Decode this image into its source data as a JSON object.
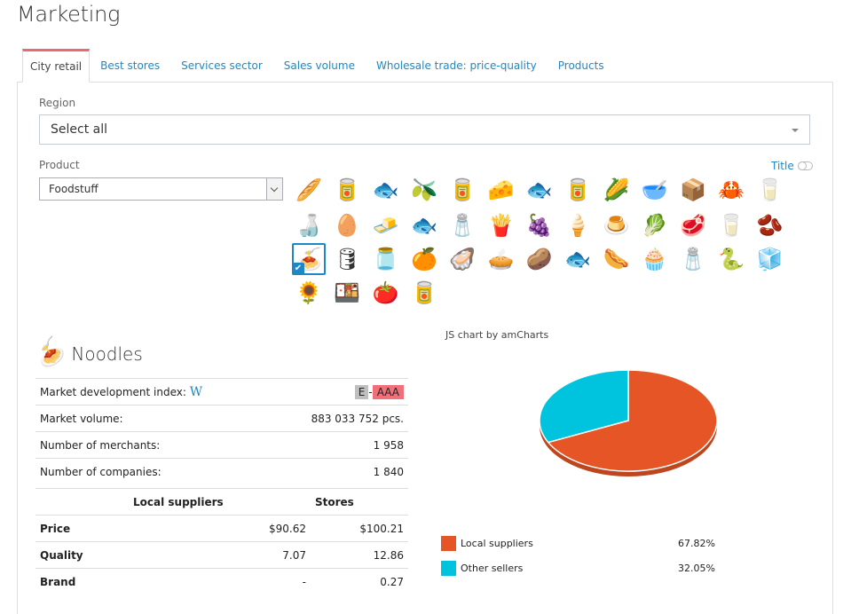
{
  "page": {
    "title": "Marketing"
  },
  "tabs": [
    {
      "label": "City retail",
      "active": true
    },
    {
      "label": "Best stores",
      "active": false
    },
    {
      "label": "Services sector",
      "active": false
    },
    {
      "label": "Sales volume",
      "active": false
    },
    {
      "label": "Wholesale trade: price-quality",
      "active": false
    },
    {
      "label": "Products",
      "active": false
    }
  ],
  "filters": {
    "region_label": "Region",
    "region_value": "Select all",
    "product_label": "Product",
    "product_value": "Foodstuff",
    "title_toggle_label": "Title"
  },
  "products": [
    {
      "name": "bread",
      "glyph": "🥖"
    },
    {
      "name": "condensed-milk-can",
      "glyph": "🥫"
    },
    {
      "name": "canned-fish-tin",
      "glyph": "🐟"
    },
    {
      "name": "olives-can",
      "glyph": "🫒"
    },
    {
      "name": "canned-food",
      "glyph": "🥫"
    },
    {
      "name": "cheese",
      "glyph": "🧀"
    },
    {
      "name": "fish",
      "glyph": "🐟"
    },
    {
      "name": "sprats-tin",
      "glyph": "🥫"
    },
    {
      "name": "corn",
      "glyph": "🌽"
    },
    {
      "name": "corn-flakes",
      "glyph": "🥣"
    },
    {
      "name": "flour-pack",
      "glyph": "📦"
    },
    {
      "name": "crab",
      "glyph": "🦀"
    },
    {
      "name": "yogurt",
      "glyph": "🥛"
    },
    {
      "name": "sauces",
      "glyph": "🍶"
    },
    {
      "name": "eggs",
      "glyph": "🥚"
    },
    {
      "name": "butter",
      "glyph": "🧈"
    },
    {
      "name": "fish-pair",
      "glyph": "🐟"
    },
    {
      "name": "salt",
      "glyph": "🧂"
    },
    {
      "name": "french-fries",
      "glyph": "🍟"
    },
    {
      "name": "grapes",
      "glyph": "🍇"
    },
    {
      "name": "ice-cream",
      "glyph": "🍦"
    },
    {
      "name": "dessert-cup",
      "glyph": "🍮"
    },
    {
      "name": "cabbage",
      "glyph": "🥬"
    },
    {
      "name": "meat",
      "glyph": "🥩"
    },
    {
      "name": "milk",
      "glyph": "🥛"
    },
    {
      "name": "soya-beans",
      "glyph": "🫘"
    },
    {
      "name": "noodles",
      "glyph": "🍝",
      "selected": true
    },
    {
      "name": "sunflower-oil",
      "glyph": "🛢"
    },
    {
      "name": "olive-oil",
      "glyph": "🫙"
    },
    {
      "name": "oranges",
      "glyph": "🍊"
    },
    {
      "name": "oysters",
      "glyph": "🦪"
    },
    {
      "name": "pie",
      "glyph": "🥧"
    },
    {
      "name": "potato",
      "glyph": "🥔"
    },
    {
      "name": "salmon",
      "glyph": "🐟"
    },
    {
      "name": "sausages",
      "glyph": "🌭"
    },
    {
      "name": "cupcake",
      "glyph": "🧁"
    },
    {
      "name": "spices",
      "glyph": "🧂"
    },
    {
      "name": "eel",
      "glyph": "🐍"
    },
    {
      "name": "sugar",
      "glyph": "🧊"
    },
    {
      "name": "sunflower-seeds",
      "glyph": "🌻"
    },
    {
      "name": "tofu",
      "glyph": "🍱"
    },
    {
      "name": "tomato",
      "glyph": "🍅"
    },
    {
      "name": "tomato-paste-can",
      "glyph": "🥫"
    }
  ],
  "selected_product": {
    "name": "Noodles",
    "glyph": "🍝",
    "info": [
      {
        "label": "Market development index:",
        "link": "W",
        "badge_from": "E",
        "badge_sep": "-",
        "badge_to": "AAA"
      },
      {
        "label": "Market volume:",
        "value": "883 033 752 pcs."
      },
      {
        "label": "Number of merchants:",
        "value": "1 958"
      },
      {
        "label": "Number of companies:",
        "value": "1 840"
      }
    ],
    "comparison": {
      "headers": [
        "Local suppliers",
        "Stores"
      ],
      "rows": [
        {
          "label": "Price",
          "local": "$90.62",
          "stores": "$100.21"
        },
        {
          "label": "Quality",
          "local": "7.07",
          "stores": "12.86"
        },
        {
          "label": "Brand",
          "local": "-",
          "stores": "0.27"
        }
      ]
    }
  },
  "chart": {
    "credit": "JS chart by amCharts"
  },
  "chart_data": {
    "type": "pie",
    "title": "",
    "categories": [
      "Local suppliers",
      "Other sellers"
    ],
    "values": [
      67.82,
      32.05
    ],
    "colors": [
      "#e65526",
      "#00c4dd"
    ],
    "labels": [
      "67.82%",
      "32.05%"
    ],
    "legend_position": "bottom",
    "depth_3d": true
  }
}
